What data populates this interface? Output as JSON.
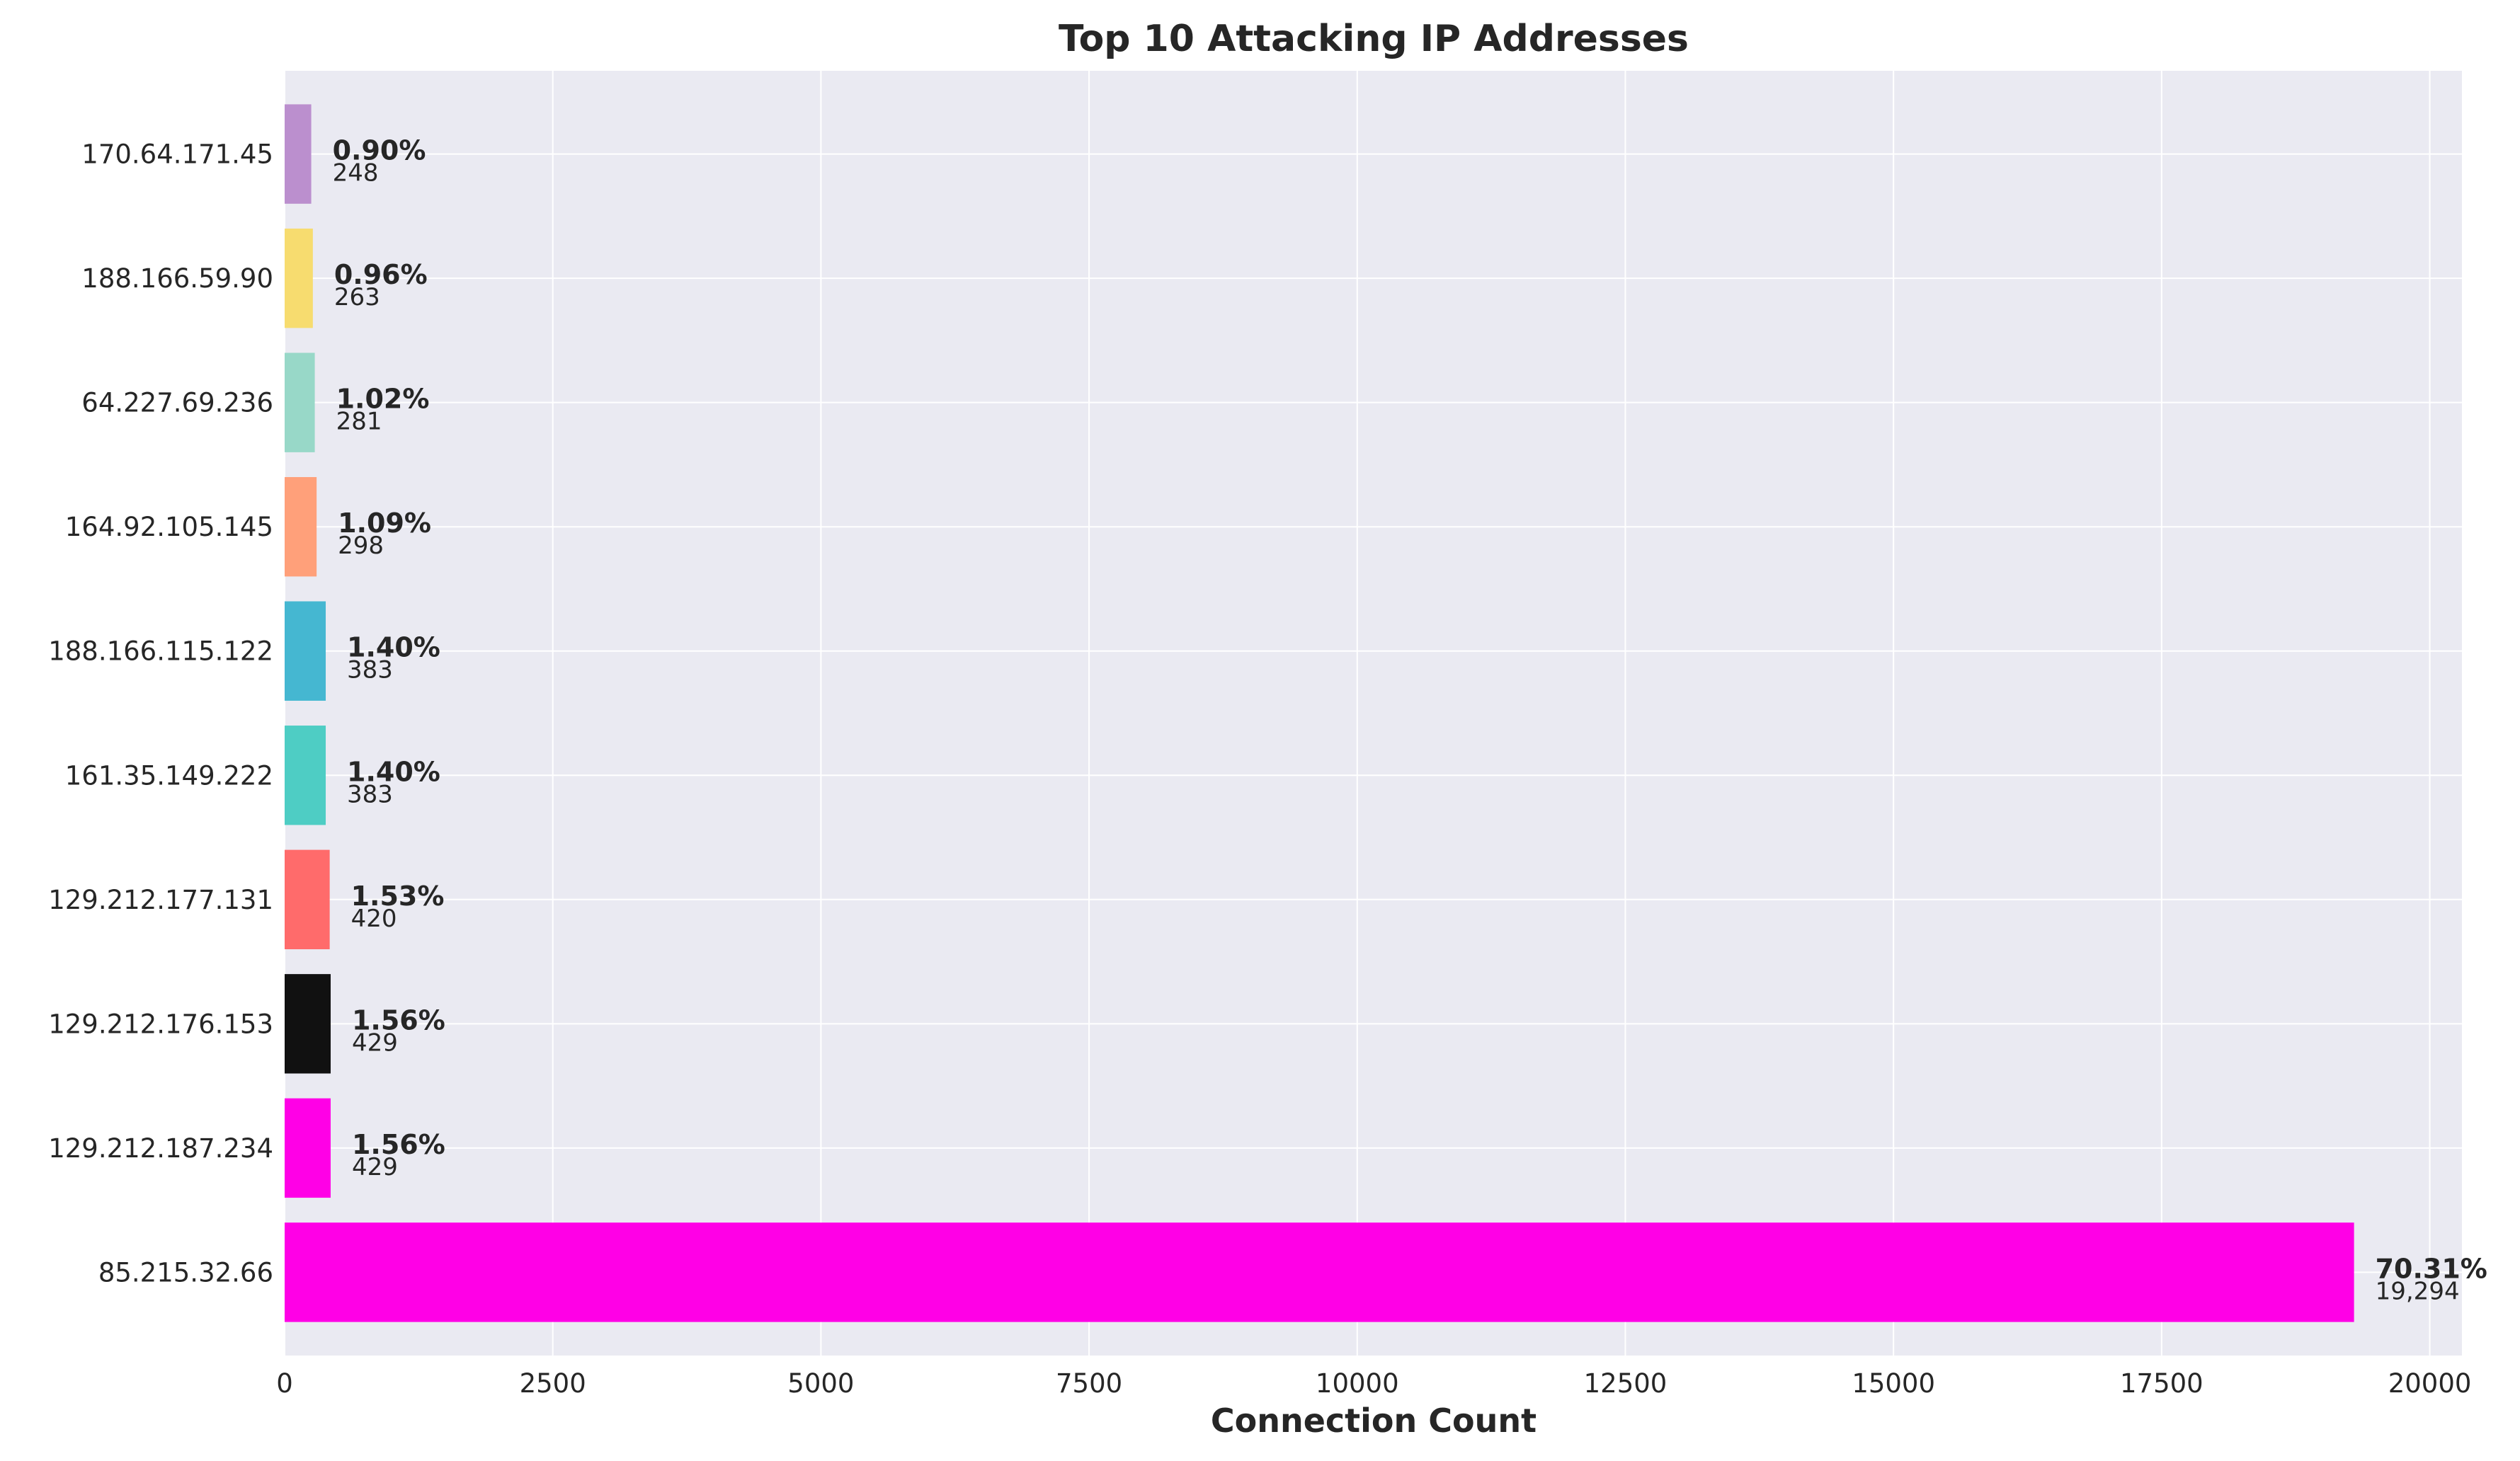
{
  "chart_data": {
    "type": "bar",
    "orientation": "horizontal",
    "title": "Top 10 Attacking IP Addresses",
    "xlabel": "Connection Count",
    "ylabel": "",
    "xlim": [
      0,
      20300
    ],
    "xticks": [
      0,
      2500,
      5000,
      7500,
      10000,
      12500,
      15000,
      17500,
      20000
    ],
    "grid": true,
    "background": "#eaeaf2",
    "categories": [
      "85.215.32.66",
      "129.212.187.234",
      "129.212.176.153",
      "129.212.177.131",
      "161.35.149.222",
      "188.166.115.122",
      "164.92.105.145",
      "64.227.69.236",
      "188.166.59.90",
      "170.64.171.45"
    ],
    "values": [
      19294,
      429,
      429,
      420,
      383,
      383,
      298,
      281,
      263,
      248
    ],
    "value_labels": [
      "19,294",
      "429",
      "429",
      "420",
      "383",
      "383",
      "298",
      "281",
      "263",
      "248"
    ],
    "percent_labels": [
      "70.31%",
      "1.56%",
      "1.56%",
      "1.53%",
      "1.40%",
      "1.40%",
      "1.09%",
      "1.02%",
      "0.96%",
      "0.90%"
    ],
    "colors": [
      "#ff00e6",
      "#ff00e6",
      "#111111",
      "#ff6b6b",
      "#4ecdc4",
      "#45b7d1",
      "#ffa07a",
      "#98d8c8",
      "#f7dc6f",
      "#bb8fce"
    ]
  }
}
